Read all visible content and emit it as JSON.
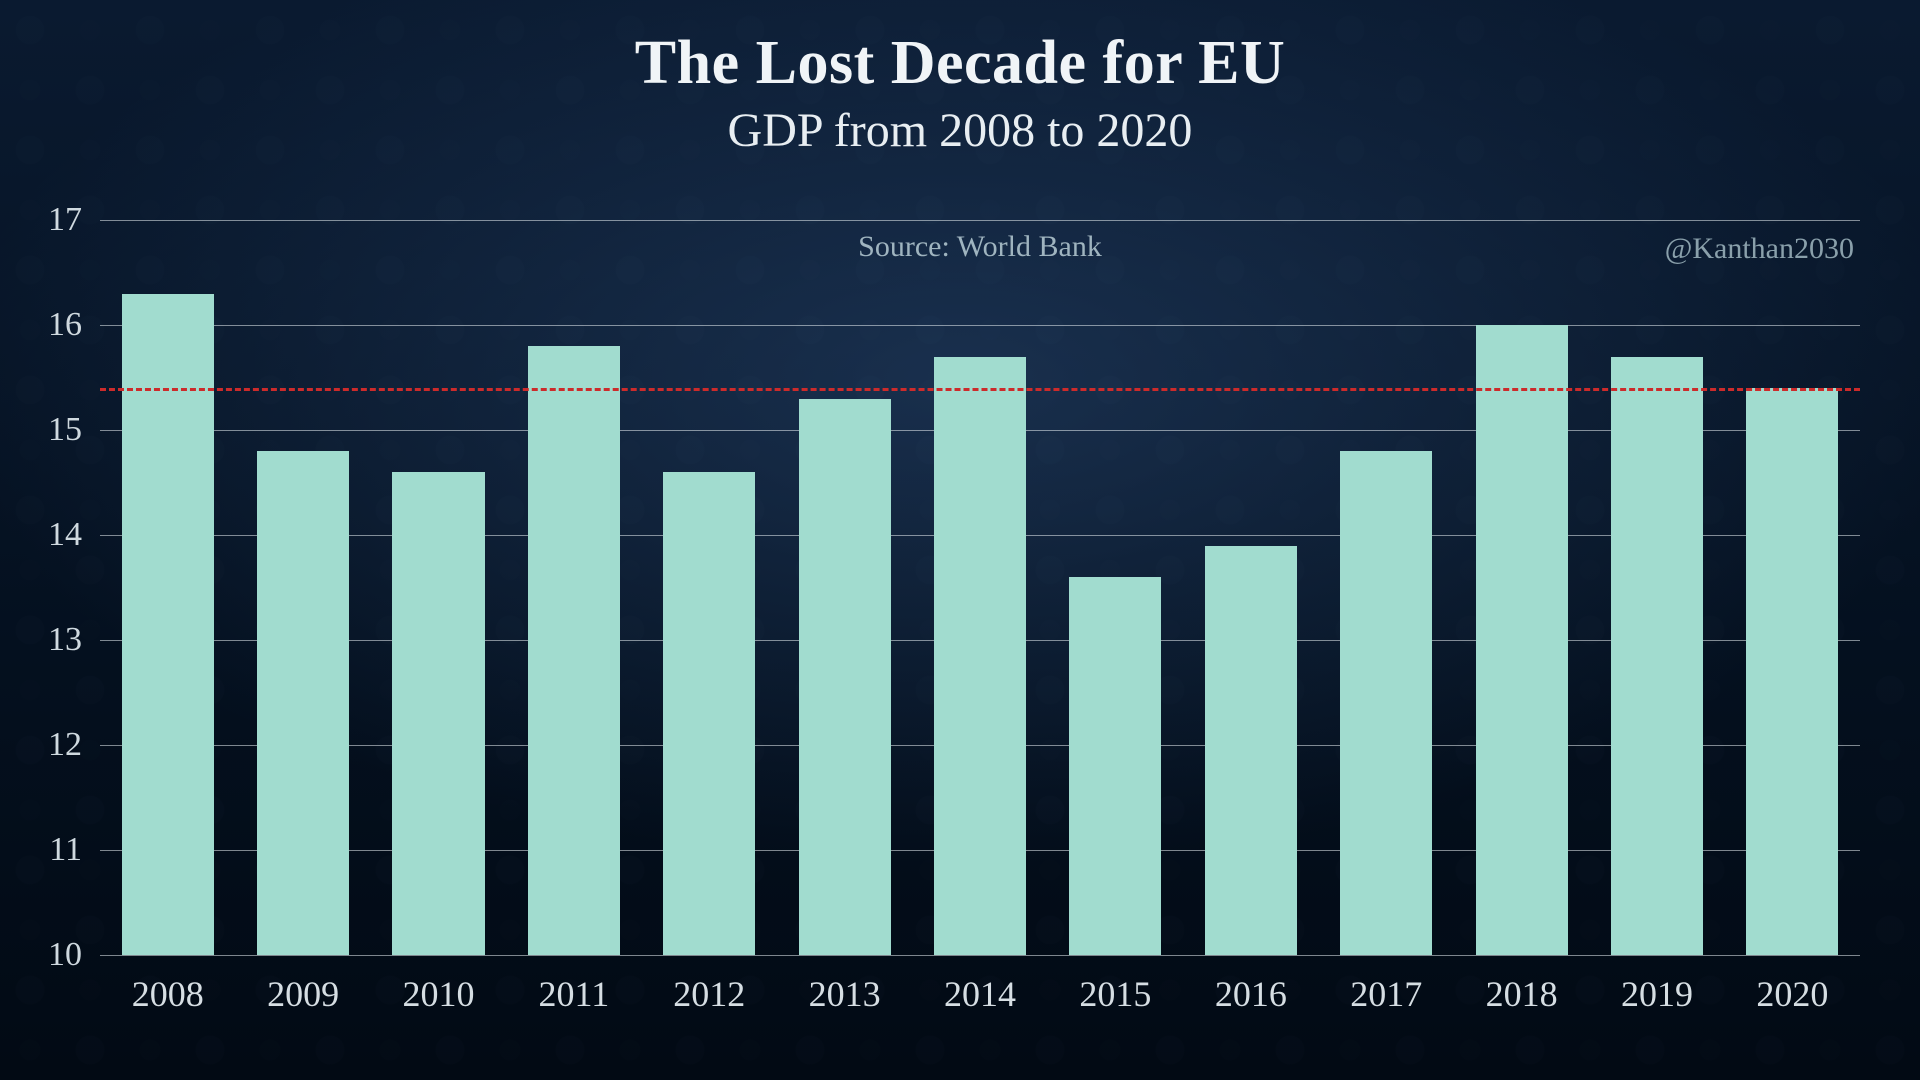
{
  "title": "The Lost Decade for EU",
  "subtitle": "GDP from 2008 to 2020",
  "source_label": "Source: World Bank",
  "watermark": "@Kanthan2030",
  "chart": {
    "type": "bar",
    "categories": [
      "2008",
      "2009",
      "2010",
      "2011",
      "2012",
      "2013",
      "2014",
      "2015",
      "2016",
      "2017",
      "2018",
      "2019",
      "2020"
    ],
    "values": [
      16.3,
      14.8,
      14.6,
      15.8,
      14.6,
      15.3,
      15.7,
      13.6,
      13.9,
      14.8,
      16.0,
      15.7,
      15.4
    ],
    "ylim": [
      10,
      17
    ],
    "ytick_step": 1,
    "reference_line": {
      "value": 15.4,
      "color": "#cc2b2b",
      "dash": "8,8",
      "width": 3
    },
    "bar_color": "#a1dccf",
    "bar_width": 0.68,
    "gridline_color": "#e6edf1",
    "gridline_opacity": 0.55,
    "axis_text_color": "#cfd9df",
    "title_fontsize": 62,
    "subtitle_fontsize": 48,
    "xtick_fontsize": 36,
    "ytick_fontsize": 34,
    "source_fontsize": 30,
    "background_color": "#0a1a30"
  }
}
